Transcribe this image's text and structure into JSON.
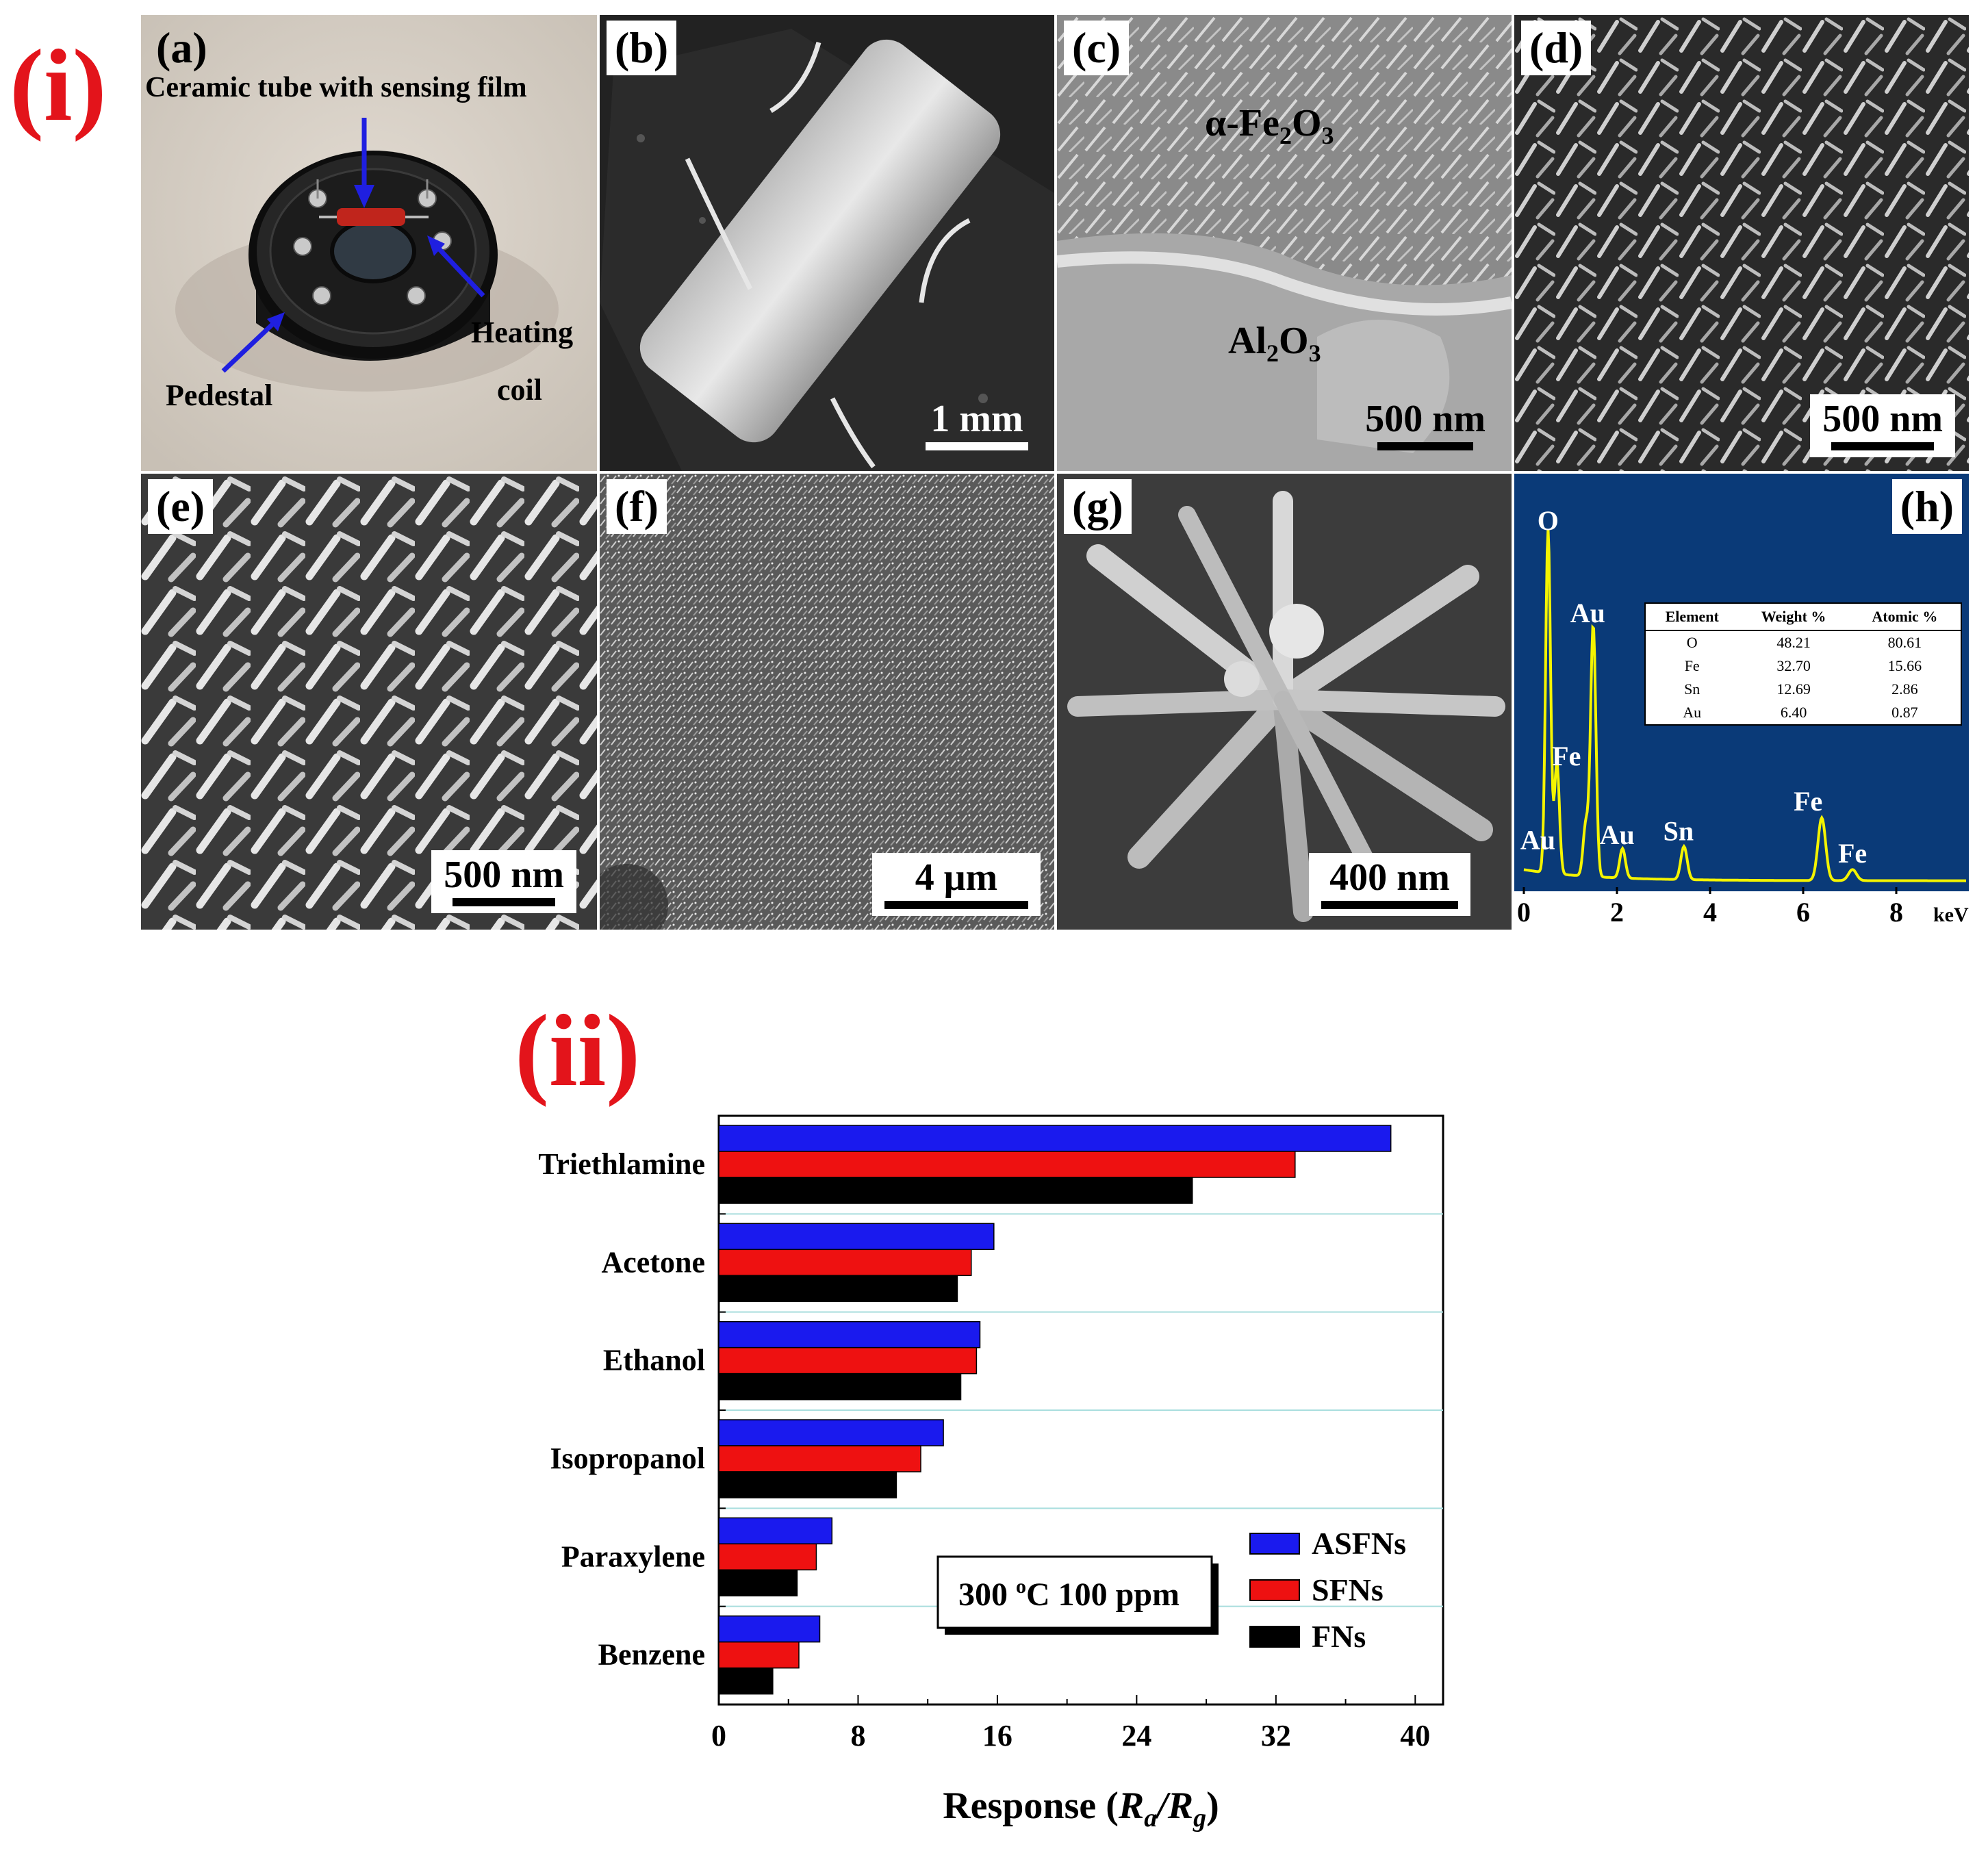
{
  "part_labels": {
    "top": "(i)",
    "bottom": "(ii)"
  },
  "panels": {
    "a": {
      "label": "(a)",
      "annotations": {
        "ceramic_tube": "Ceramic tube with sensing film",
        "heating": "Heating",
        "coil": "coil",
        "pedestal": "Pedestal"
      }
    },
    "b": {
      "label": "(b)",
      "scale": "1 mm"
    },
    "c": {
      "label": "(c)",
      "scale": "500 nm",
      "top_phase": "α-Fe",
      "bottom_phase": "Al"
    },
    "d": {
      "label": "(d)",
      "scale": "500 nm"
    },
    "e": {
      "label": "(e)",
      "scale": "500 nm"
    },
    "f": {
      "label": "(f)",
      "scale": "4 μm"
    },
    "g": {
      "label": "(g)",
      "scale": "400 nm"
    },
    "h": {
      "label": "(h)",
      "x_unit": "keV",
      "x_ticks": [
        "0",
        "2",
        "4",
        "6",
        "8"
      ],
      "peaks": [
        {
          "label": "O",
          "kev": 0.52,
          "height": 0.93
        },
        {
          "label": "Fe",
          "kev": 0.71,
          "height": 0.3
        },
        {
          "label": "Au",
          "kev": 1.33,
          "height": 0.14
        },
        {
          "label": "Au",
          "kev": 1.49,
          "height": 0.68
        },
        {
          "label": "Au",
          "kev": 2.12,
          "height": 0.08
        },
        {
          "label": "Sn",
          "kev": 3.44,
          "height": 0.09
        },
        {
          "label": "Fe",
          "kev": 6.4,
          "height": 0.17
        },
        {
          "label": "Fe",
          "kev": 7.06,
          "height": 0.03
        }
      ],
      "table": {
        "headers": [
          "Element",
          "Weight %",
          "Atomic %"
        ],
        "rows": [
          [
            "O",
            "48.21",
            "80.61"
          ],
          [
            "Fe",
            "32.70",
            "15.66"
          ],
          [
            "Sn",
            "12.69",
            "2.86"
          ],
          [
            "Au",
            "6.40",
            "0.87"
          ]
        ]
      },
      "colors": {
        "background": "#0a3a78",
        "spectrum": "#f4f400"
      }
    }
  },
  "chart_data": {
    "type": "bar",
    "orientation": "horizontal",
    "categories": [
      "Triethlamine",
      "Acetone",
      "Ethanol",
      "Isopropanol",
      "Paraxylene",
      "Benzene"
    ],
    "series": [
      {
        "name": "ASFNs",
        "color": "#1a1aee",
        "values": [
          38.6,
          15.8,
          15.0,
          12.9,
          6.5,
          5.8
        ]
      },
      {
        "name": "SFNs",
        "color": "#ee1111",
        "values": [
          33.1,
          14.5,
          14.8,
          11.6,
          5.6,
          4.6
        ]
      },
      {
        "name": "FNs",
        "color": "#000000",
        "values": [
          27.2,
          13.7,
          13.9,
          10.2,
          4.5,
          3.1
        ]
      }
    ],
    "xlabel": "Response (Ra/Rg)",
    "xlim": [
      0,
      41.6
    ],
    "xticks": [
      0,
      8,
      16,
      24,
      32,
      40
    ],
    "annotation_main": "300 ",
    "annotation_sup": "o",
    "annotation_tail": "C 100 ppm",
    "legend_position": "lower-right",
    "grid": "horizontal separators between categories"
  }
}
